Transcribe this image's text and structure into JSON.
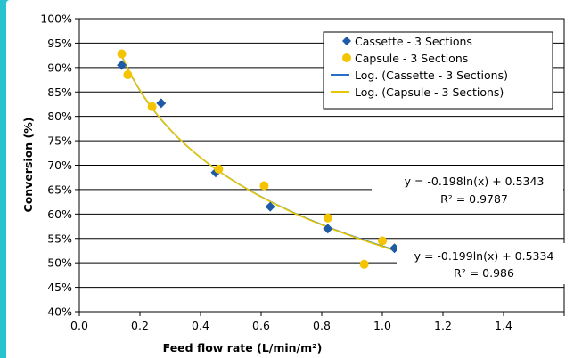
{
  "colors": {
    "frame": "#29c3cf",
    "cassette": "#1f5aa6",
    "capsule": "#f5c400",
    "cassette_fit": "#2a6fc4",
    "capsule_fit": "#e6c800",
    "grid": "#000000"
  },
  "chart_data": {
    "type": "scatter",
    "xlabel": "Feed flow rate (L/min/m²)",
    "ylabel": "Conversion (%)",
    "xlim": [
      0,
      1.6
    ],
    "ylim": [
      0.4,
      1.0
    ],
    "xticks": [
      "0.0",
      "0.2",
      "0.4",
      "0.6",
      "0.8",
      "1.0",
      "1.2",
      "1.4"
    ],
    "xtick_values": [
      0,
      0.2,
      0.4,
      0.6,
      0.8,
      1.0,
      1.2,
      1.4
    ],
    "yticks": [
      "40%",
      "45%",
      "50%",
      "55%",
      "60%",
      "65%",
      "70%",
      "75%",
      "80%",
      "85%",
      "90%",
      "95%",
      "100%"
    ],
    "ytick_values": [
      0.4,
      0.45,
      0.5,
      0.55,
      0.6,
      0.65,
      0.7,
      0.75,
      0.8,
      0.85,
      0.9,
      0.95,
      1.0
    ],
    "grid": "horizontal",
    "legend_position": "top-right",
    "series": [
      {
        "name": "Cassette - 3 Sections",
        "marker": "diamond",
        "color": "#1f5aa6",
        "x": [
          0.14,
          0.27,
          0.45,
          0.63,
          0.82,
          1.04
        ],
        "y": [
          0.905,
          0.827,
          0.685,
          0.615,
          0.57,
          0.53
        ]
      },
      {
        "name": "Capsule - 3 Sections",
        "marker": "circle",
        "color": "#f5c400",
        "x": [
          0.14,
          0.16,
          0.24,
          0.46,
          0.61,
          0.82,
          0.94,
          1.0
        ],
        "y": [
          0.928,
          0.885,
          0.82,
          0.692,
          0.658,
          0.592,
          0.497,
          0.545
        ]
      }
    ],
    "trendlines": [
      {
        "name": "Log. (Cassette - 3 Sections)",
        "color": "#2a6fc4",
        "a": -0.198,
        "b": 0.5343,
        "equation": "y = -0.198ln(x) + 0.5343",
        "r2": "R² = 0.9787",
        "x_range": [
          0.14,
          1.04
        ]
      },
      {
        "name": "Log. (Capsule - 3 Sections)",
        "color": "#e6c800",
        "a": -0.199,
        "b": 0.5334,
        "equation": "y = -0.199ln(x) + 0.5334",
        "r2": "R² = 0.986",
        "x_range": [
          0.14,
          1.04
        ]
      }
    ]
  }
}
